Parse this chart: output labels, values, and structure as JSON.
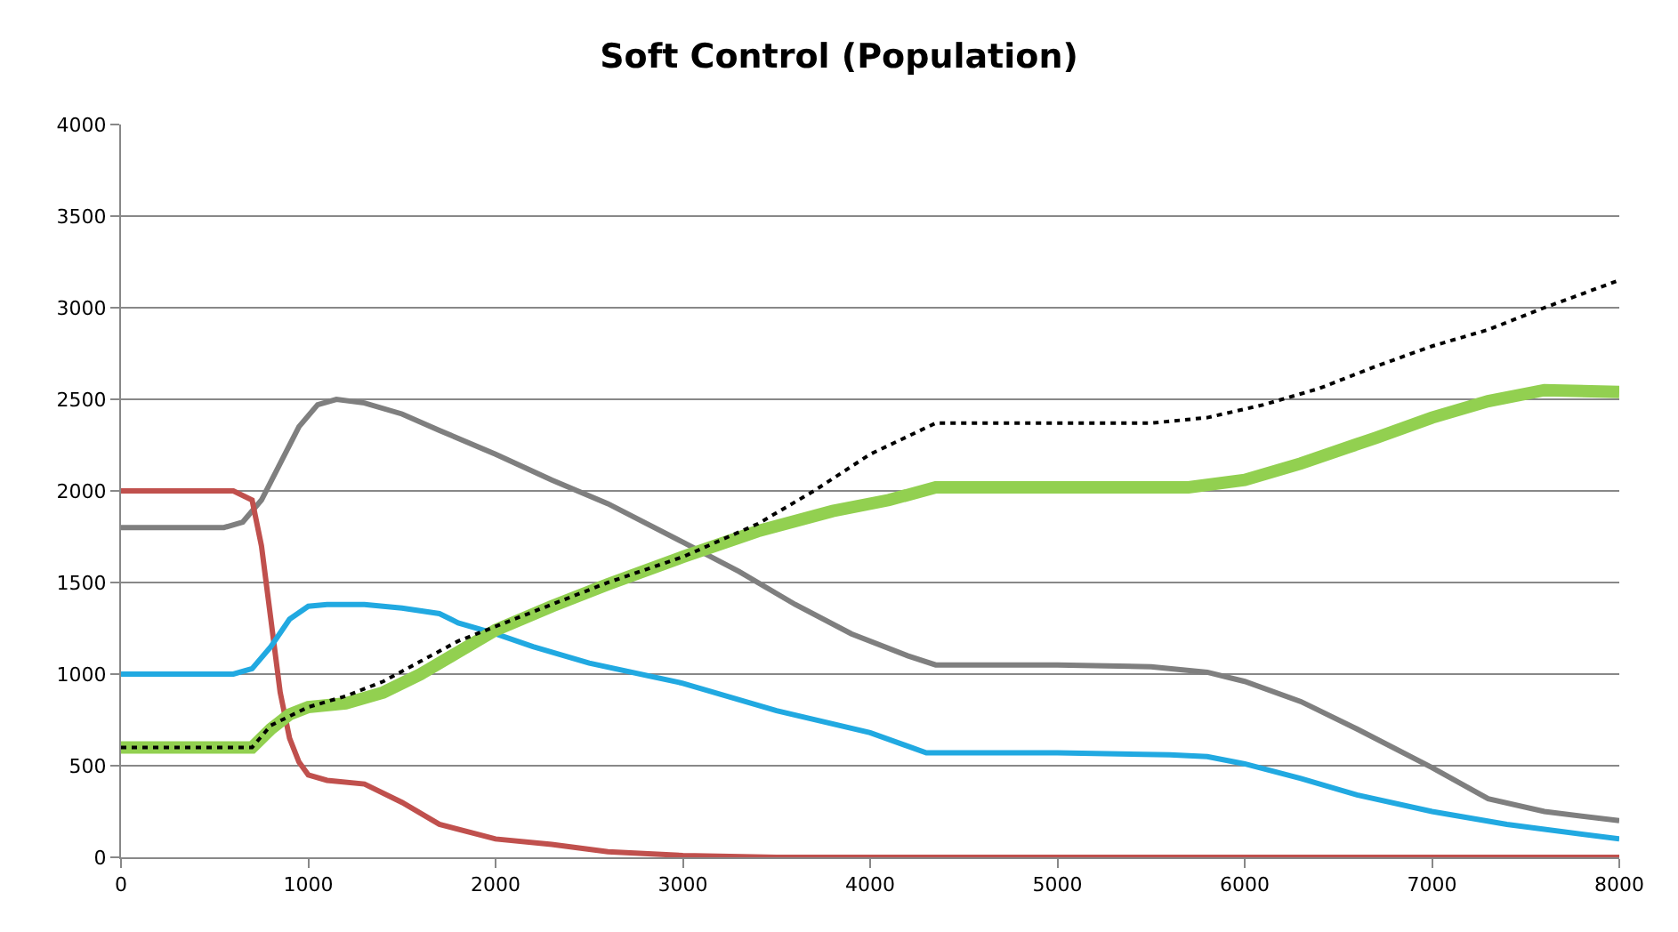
{
  "chart_data": {
    "type": "line",
    "title": "Soft Control (Population)",
    "xlim": [
      0,
      8000
    ],
    "xticks": [
      0,
      1000,
      2000,
      3000,
      4000,
      5000,
      6000,
      7000,
      8000
    ],
    "ylim": [
      0,
      4000
    ],
    "yticks": [
      0,
      500,
      1000,
      1500,
      2000,
      2500,
      3000,
      3500,
      4000
    ],
    "grid": "y",
    "marker": "none",
    "series": [
      {
        "color": "#7f7f7f",
        "line_style": "solid",
        "x": [
          0,
          550,
          650,
          750,
          850,
          950,
          1050,
          1150,
          1300,
          1500,
          1700,
          2000,
          2300,
          2600,
          3000,
          3300,
          3600,
          3900,
          4200,
          4350,
          5000,
          5500,
          5800,
          6000,
          6300,
          6600,
          7000,
          7300,
          7600,
          8000
        ],
        "values": [
          1800,
          1800,
          1830,
          1950,
          2150,
          2350,
          2470,
          2500,
          2480,
          2420,
          2330,
          2200,
          2060,
          1930,
          1720,
          1560,
          1380,
          1220,
          1100,
          1050,
          1050,
          1040,
          1010,
          960,
          850,
          700,
          490,
          320,
          250,
          200
        ]
      },
      {
        "color": "#c0504d",
        "line_style": "solid",
        "x": [
          0,
          600,
          700,
          750,
          800,
          850,
          900,
          950,
          1000,
          1100,
          1300,
          1500,
          1700,
          2000,
          2300,
          2600,
          3000,
          3500,
          8000
        ],
        "values": [
          2000,
          2000,
          1950,
          1700,
          1300,
          900,
          650,
          520,
          450,
          420,
          400,
          300,
          180,
          100,
          70,
          30,
          10,
          0,
          0
        ]
      },
      {
        "color": "#21a9e1",
        "line_style": "solid",
        "x": [
          0,
          600,
          700,
          800,
          900,
          1000,
          1100,
          1300,
          1500,
          1700,
          1800,
          2000,
          2200,
          2500,
          3000,
          3500,
          4000,
          4300,
          5000,
          5600,
          5800,
          6000,
          6300,
          6600,
          7000,
          7400,
          8000
        ],
        "values": [
          1000,
          1000,
          1030,
          1150,
          1300,
          1370,
          1380,
          1380,
          1360,
          1330,
          1280,
          1220,
          1150,
          1060,
          950,
          800,
          680,
          570,
          570,
          560,
          550,
          510,
          430,
          340,
          250,
          180,
          100
        ]
      },
      {
        "color": "#92d050",
        "line_style": "solid",
        "x": [
          0,
          700,
          800,
          900,
          1000,
          1200,
          1400,
          1600,
          1800,
          2000,
          2300,
          2600,
          3000,
          3400,
          3800,
          4100,
          4350,
          5000,
          5700,
          6000,
          6300,
          6700,
          7000,
          7300,
          7600,
          8000
        ],
        "values": [
          600,
          600,
          700,
          780,
          820,
          840,
          900,
          1000,
          1120,
          1240,
          1370,
          1490,
          1640,
          1780,
          1890,
          1950,
          2020,
          2020,
          2020,
          2060,
          2150,
          2290,
          2400,
          2490,
          2550,
          2540
        ]
      },
      {
        "color": "#000000",
        "line_style": "dotted",
        "x": [
          0,
          700,
          800,
          1000,
          1200,
          1400,
          1600,
          1800,
          2000,
          2300,
          2600,
          3000,
          3400,
          3700,
          4000,
          4350,
          5000,
          5500,
          5800,
          6100,
          6400,
          6700,
          7000,
          7300,
          7600,
          8000
        ],
        "values": [
          600,
          600,
          720,
          820,
          880,
          960,
          1070,
          1180,
          1260,
          1380,
          1500,
          1640,
          1820,
          2000,
          2200,
          2370,
          2370,
          2370,
          2400,
          2470,
          2560,
          2680,
          2790,
          2880,
          3000,
          3150
        ]
      }
    ]
  }
}
